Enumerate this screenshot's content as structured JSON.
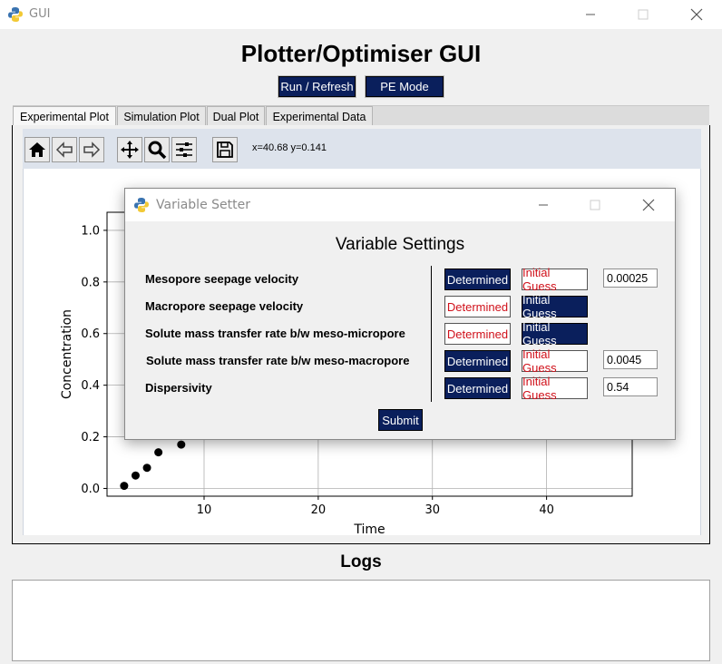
{
  "window": {
    "title": "GUI",
    "controls": [
      "minimize",
      "maximize",
      "close"
    ]
  },
  "header": {
    "title": "Plotter/Optimiser GUI",
    "run_label": "Run / Refresh",
    "pe_label": "PE Mode"
  },
  "tabs": [
    {
      "label": "Experimental Plot",
      "active": true
    },
    {
      "label": "Simulation Plot",
      "active": false
    },
    {
      "label": "Dual Plot",
      "active": false
    },
    {
      "label": "Experimental Data",
      "active": false
    }
  ],
  "toolbar": {
    "icons": [
      "home-icon",
      "back-arrow-icon",
      "forward-arrow-icon",
      "pan-icon",
      "zoom-icon",
      "configure-subplots-icon",
      "save-icon"
    ],
    "coords": "x=40.68 y=0.141"
  },
  "chart_data": {
    "type": "scatter",
    "xlabel": "Time",
    "ylabel": "Concentration",
    "xlim": [
      1.5,
      47.5
    ],
    "ylim": [
      -0.03,
      1.07
    ],
    "x_ticks": [
      "10",
      "20",
      "30",
      "40"
    ],
    "y_ticks": [
      "0.0",
      "0.2",
      "0.4",
      "0.6",
      "0.8",
      "1.0"
    ],
    "grid": true,
    "x": [
      3,
      4,
      5,
      6,
      8
    ],
    "y": [
      0.01,
      0.05,
      0.08,
      0.14,
      0.17
    ]
  },
  "logs": {
    "title": "Logs",
    "content": ""
  },
  "dialog": {
    "title": "Variable Setter",
    "heading": "Variable Settings",
    "determined_label": "Determined",
    "initial_guess_label": "Initial Guess",
    "submit_label": "Submit",
    "variables": [
      {
        "label": "Mesopore seepage velocity",
        "mode": "determined",
        "value": "0.00025"
      },
      {
        "label": "Macropore seepage velocity",
        "mode": "initial_guess",
        "value": ""
      },
      {
        "label": "Solute mass transfer rate b/w meso-micropore",
        "mode": "initial_guess",
        "value": ""
      },
      {
        "label": "Solute mass transfer rate b/w meso-macropore",
        "mode": "determined",
        "value": "0.0045"
      },
      {
        "label": "Dispersivity",
        "mode": "determined",
        "value": "0.54"
      }
    ]
  },
  "colors": {
    "accent": "#0a1f5c",
    "inactive_text": "#d0101a",
    "toolbar_bg": "#dde3ec"
  }
}
